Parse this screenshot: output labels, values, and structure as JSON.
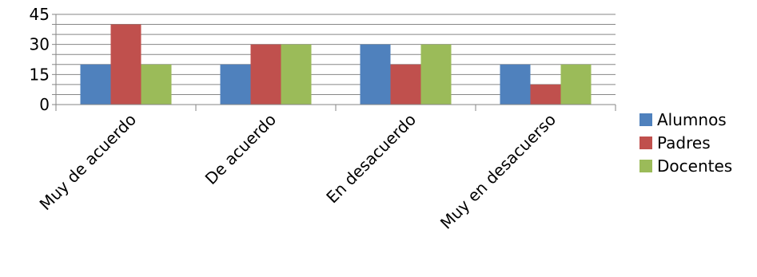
{
  "chart_data": {
    "type": "bar",
    "title": "",
    "xlabel": "",
    "ylabel": "",
    "categories": [
      "Muy de acuerdo",
      "De acuerdo",
      "En desacuerdo",
      "Muy en desacuerso"
    ],
    "series": [
      {
        "name": "Alumnos",
        "values": [
          20,
          20,
          30,
          20
        ],
        "color": "#4f81bd"
      },
      {
        "name": "Padres",
        "values": [
          40,
          30,
          20,
          10
        ],
        "color": "#c0504d"
      },
      {
        "name": "Docentes",
        "values": [
          20,
          30,
          30,
          20
        ],
        "color": "#9bbb59"
      }
    ],
    "ylim": [
      0,
      45
    ],
    "yticks": [
      "0",
      "15",
      "30",
      "45"
    ],
    "minor_gridline_step": 5,
    "grid": true,
    "legend_position": "right"
  }
}
